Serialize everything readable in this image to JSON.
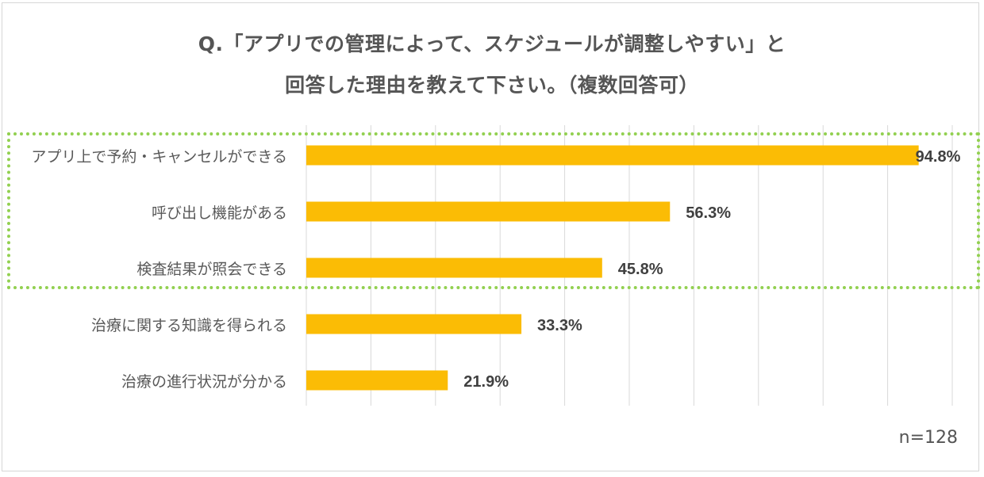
{
  "title": {
    "line1": "Q.「アプリでの管理によって、スケジュールが調整しやすい」と",
    "line2": "回答した理由を教えて下さい。（複数回答可）"
  },
  "note": "n=128",
  "colors": {
    "bar": "#fbbc05",
    "grid": "#d9d9d9",
    "highlight": "#92d050",
    "text": "#595959"
  },
  "chart_data": {
    "type": "bar",
    "orientation": "horizontal",
    "categories": [
      "アプリ上で予約・キャンセルができる",
      "呼び出し機能がある",
      "検査結果が照会できる",
      "治療に関する知識を得られる",
      "治療の進行状況が分かる"
    ],
    "values": [
      94.8,
      56.3,
      45.8,
      33.3,
      21.9
    ],
    "value_labels": [
      "94.8%",
      "56.3%",
      "45.8%",
      "33.3%",
      "21.9%"
    ],
    "xlim": [
      0,
      100
    ],
    "grid": true,
    "highlighted_categories": [
      0,
      1,
      2
    ]
  }
}
